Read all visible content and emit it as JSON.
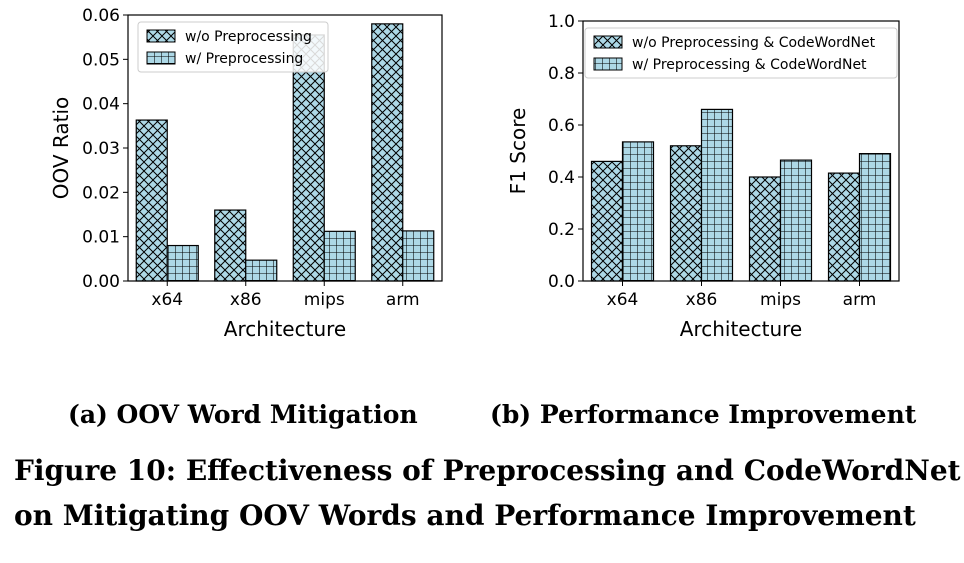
{
  "colors": {
    "bar_fill": "#add8e6",
    "hatch": "#000000"
  },
  "chart_data": [
    {
      "type": "bar",
      "categories": [
        "x64",
        "x86",
        "mips",
        "arm"
      ],
      "series": [
        {
          "name": "w/o Preprocessing",
          "values": [
            0.0363,
            0.016,
            0.0555,
            0.058
          ],
          "hatch": "cross-diagonal"
        },
        {
          "name": "w/ Preprocessing",
          "values": [
            0.008,
            0.0047,
            0.0112,
            0.0113
          ],
          "hatch": "grid"
        }
      ],
      "xlabel": "Architecture",
      "ylabel": "OOV Ratio",
      "ylim": [
        0,
        0.06
      ],
      "yticks": [
        "0.00",
        "0.01",
        "0.02",
        "0.03",
        "0.04",
        "0.05",
        "0.06"
      ],
      "legend": "top-left",
      "grid": false
    },
    {
      "type": "bar",
      "categories": [
        "x64",
        "x86",
        "mips",
        "arm"
      ],
      "series": [
        {
          "name": "w/o Preprocessing & CodeWordNet",
          "values": [
            0.46,
            0.52,
            0.4,
            0.415
          ],
          "hatch": "cross-diagonal"
        },
        {
          "name": "w/ Preprocessing & CodeWordNet",
          "values": [
            0.535,
            0.66,
            0.465,
            0.49
          ],
          "hatch": "grid"
        }
      ],
      "xlabel": "Architecture",
      "ylabel": "F1 Score",
      "ylim": [
        0,
        1.0
      ],
      "yticks": [
        "0.0",
        "0.2",
        "0.4",
        "0.6",
        "0.8",
        "1.0"
      ],
      "legend": "top",
      "grid": false
    }
  ],
  "captions": {
    "sub_a": "(a) OOV Word Mitigation",
    "sub_b": "(b) Performance Improvement",
    "figure_line1": "Figure 10: Effectiveness of Preprocessing and CodeWordNet",
    "figure_line2": "on Mitigating OOV Words and Performance Improvement"
  }
}
